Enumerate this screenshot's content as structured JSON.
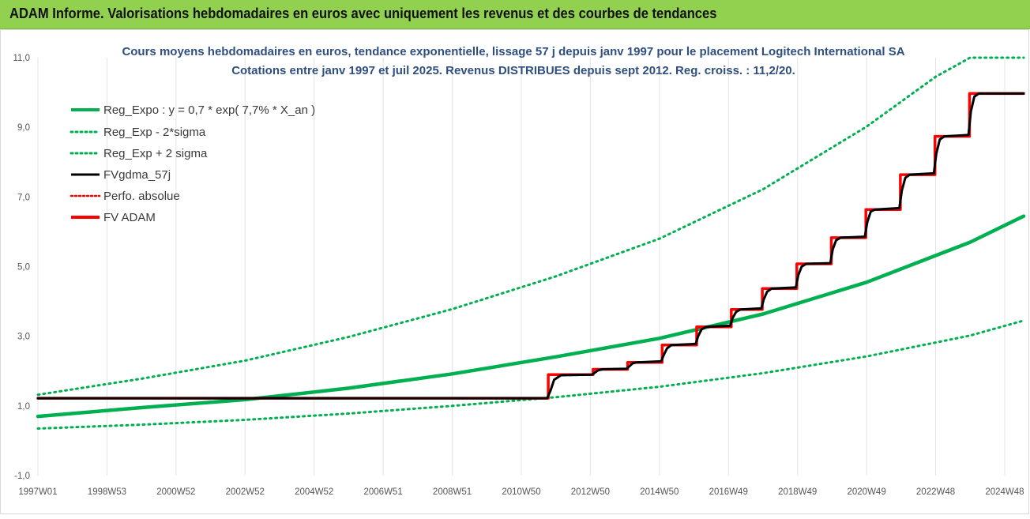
{
  "header": {
    "title": "ADAM Informe. Valorisations hebdomadaires en euros avec uniquement les revenus et des courbes de tendances"
  },
  "chart_data": {
    "type": "line",
    "title_lines": [
      "Cours moyens hebdomadaires en euros, tendance exponentielle, lissage 57 j depuis janv 1997  pour le placement Logitech International SA",
      "Cotations entre janv 1997 et juil 2025. Revenus DISTRIBUES depuis sept 2012. Reg. croiss. : 11,2/20."
    ],
    "xlabel": "",
    "ylabel": "",
    "x_range": [
      1997.0,
      2025.55
    ],
    "ylim": [
      -1.0,
      11.0
    ],
    "y_ticks": [
      "11,0",
      "9,0",
      "7,0",
      "5,0",
      "3,0",
      "1,0",
      "-1,0"
    ],
    "y_tick_values": [
      11,
      9,
      7,
      5,
      3,
      1,
      -1
    ],
    "x_ticks": [
      "1997W01",
      "1998W53",
      "2000W52",
      "2002W52",
      "2004W52",
      "2006W51",
      "2008W51",
      "2010W50",
      "2012W50",
      "2014W50",
      "2016W49",
      "2018W49",
      "2020W49",
      "2022W48",
      "2024W48"
    ],
    "x_tick_positions": [
      1997.0,
      1999.0,
      2001.0,
      2003.0,
      2005.0,
      2007.0,
      2009.0,
      2011.0,
      2013.0,
      2015.0,
      2017.0,
      2019.0,
      2021.0,
      2023.0,
      2025.0
    ],
    "grid": "vertical",
    "legend_position": "top-left",
    "colors": {
      "reg_expo": "#00b050",
      "fvgdma": "#000000",
      "perfo": "#ff0000",
      "fvadam": "#ff0000",
      "banner": "#92d050"
    },
    "series": [
      {
        "name": "Reg_Expo : y = 0,7 * exp( 7,7% *  X_an )",
        "style": "solid",
        "color": "#00b050",
        "x": [
          1997.0,
          2000.0,
          2003.0,
          2006.0,
          2009.0,
          2012.0,
          2015.0,
          2018.0,
          2021.0,
          2024.0,
          2025.55
        ],
        "values": [
          0.7,
          0.95,
          1.18,
          1.51,
          1.92,
          2.41,
          2.94,
          3.64,
          4.55,
          5.7,
          6.45
        ]
      },
      {
        "name": "Reg_Exp - 2*sigma",
        "style": "dotted",
        "color": "#00b050",
        "x": [
          1997.0,
          2000.0,
          2003.0,
          2006.0,
          2009.0,
          2012.0,
          2015.0,
          2018.0,
          2021.0,
          2024.0,
          2025.55
        ],
        "values": [
          0.35,
          0.46,
          0.6,
          0.78,
          1.0,
          1.25,
          1.55,
          1.94,
          2.42,
          3.02,
          3.45
        ]
      },
      {
        "name": "Reg_Exp + 2 sigma",
        "style": "dotted",
        "color": "#00b050",
        "x": [
          1997.0,
          2000.0,
          2003.0,
          2006.0,
          2009.0,
          2012.0,
          2015.0,
          2018.0,
          2021.0,
          2023.0,
          2024.0,
          2025.55
        ],
        "values": [
          1.32,
          1.78,
          2.3,
          2.98,
          3.78,
          4.72,
          5.8,
          7.22,
          9.02,
          10.45,
          11.0,
          11.0
        ]
      },
      {
        "name": "FVgdma_57j",
        "style": "solid",
        "color": "#000000",
        "x": [
          1997.0,
          2011.75,
          2011.85,
          2011.95,
          2012.15,
          2013.05,
          2013.12,
          2013.22,
          2013.35,
          2014.05,
          2014.12,
          2014.22,
          2014.35,
          2015.05,
          2015.12,
          2015.22,
          2015.35,
          2016.05,
          2016.12,
          2016.22,
          2016.35,
          2017.05,
          2017.12,
          2017.22,
          2017.35,
          2017.95,
          2018.02,
          2018.12,
          2018.25,
          2018.95,
          2019.02,
          2019.12,
          2019.25,
          2019.95,
          2020.02,
          2020.12,
          2020.25,
          2020.95,
          2021.02,
          2021.12,
          2021.25,
          2021.95,
          2022.02,
          2022.12,
          2022.25,
          2022.95,
          2023.02,
          2023.12,
          2023.25,
          2023.95,
          2024.02,
          2024.12,
          2024.25,
          2025.55
        ],
        "values": [
          1.22,
          1.22,
          1.45,
          1.75,
          1.88,
          1.9,
          1.95,
          2.02,
          2.05,
          2.07,
          2.13,
          2.22,
          2.25,
          2.28,
          2.45,
          2.65,
          2.75,
          2.78,
          3.0,
          3.2,
          3.27,
          3.3,
          3.52,
          3.7,
          3.77,
          3.8,
          4.05,
          4.28,
          4.37,
          4.4,
          4.75,
          5.0,
          5.08,
          5.1,
          5.5,
          5.76,
          5.83,
          5.86,
          6.28,
          6.58,
          6.64,
          6.68,
          7.18,
          7.55,
          7.64,
          7.68,
          8.25,
          8.65,
          8.74,
          8.78,
          9.45,
          9.88,
          9.97,
          9.97
        ]
      },
      {
        "name": "Perfo. absolue",
        "style": "dotted",
        "color": "#ff0000",
        "x": [],
        "values": []
      },
      {
        "name": "FV ADAM",
        "style": "solid",
        "color": "#ff0000",
        "x": [
          1997.0,
          2011.78,
          2011.78,
          2013.08,
          2013.08,
          2014.08,
          2014.08,
          2015.08,
          2015.08,
          2016.08,
          2016.08,
          2017.08,
          2017.08,
          2017.98,
          2017.98,
          2018.98,
          2018.98,
          2019.98,
          2019.98,
          2020.98,
          2020.98,
          2021.98,
          2021.98,
          2022.98,
          2022.98,
          2023.98,
          2023.98,
          2025.55
        ],
        "values": [
          1.22,
          1.22,
          1.9,
          1.9,
          2.05,
          2.05,
          2.25,
          2.25,
          2.75,
          2.75,
          3.27,
          3.27,
          3.77,
          3.77,
          4.37,
          4.37,
          5.08,
          5.08,
          5.83,
          5.83,
          6.64,
          6.64,
          7.64,
          7.64,
          8.74,
          8.74,
          9.97,
          9.97
        ]
      }
    ]
  }
}
